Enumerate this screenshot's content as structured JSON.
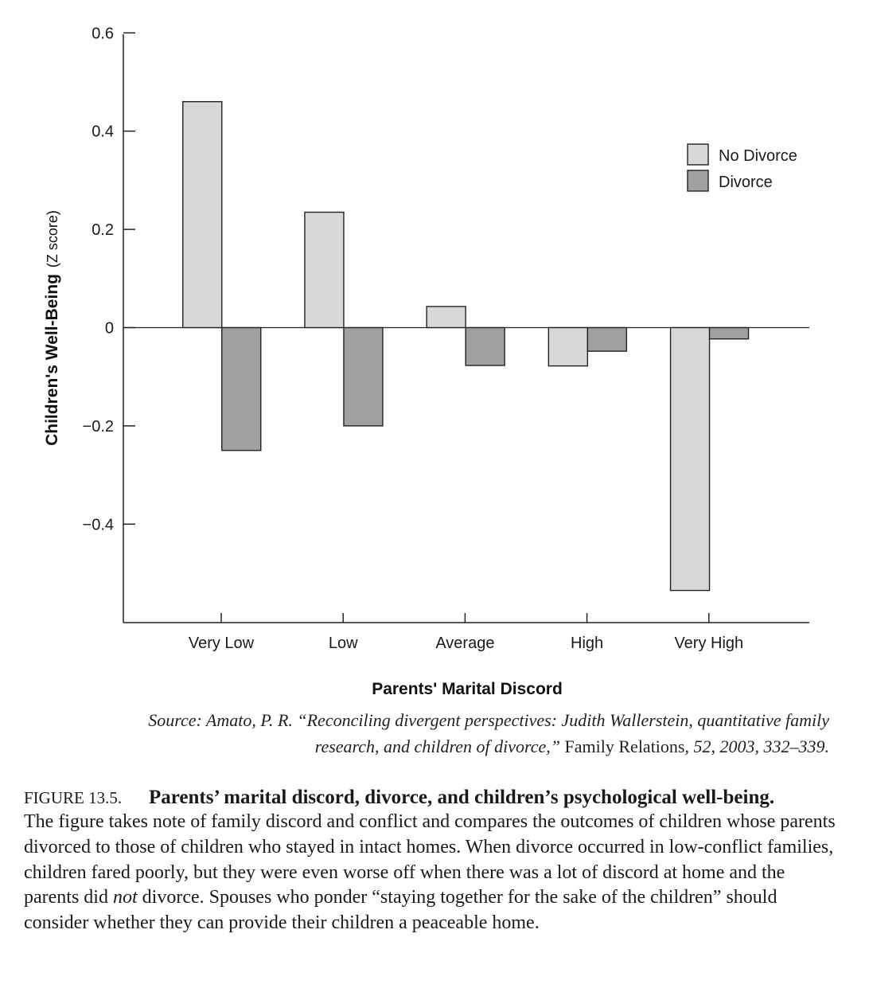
{
  "chart_data": {
    "type": "bar",
    "categories": [
      "Very Low",
      "Low",
      "Average",
      "High",
      "Very High"
    ],
    "series": [
      {
        "name": "No Divorce",
        "values": [
          0.46,
          0.235,
          0.043,
          -0.078,
          -0.535
        ],
        "color": "#d8d8d8"
      },
      {
        "name": "Divorce",
        "values": [
          -0.25,
          -0.2,
          -0.077,
          -0.048,
          -0.023
        ],
        "color": "#a0a0a0"
      }
    ],
    "ylim": [
      -0.6,
      0.6
    ],
    "yticks": [
      0.6,
      0.4,
      0.2,
      0,
      -0.2,
      -0.4
    ],
    "ytick_labels": [
      "0.6",
      "0.4",
      "0.2",
      "0",
      "−0.2",
      "−0.4"
    ],
    "xlabel": "Parents' Marital Discord",
    "ylabel": "Children's Well-Being",
    "ylabel_unit": "(Z score)",
    "legend_position": "top-right",
    "grid": false
  },
  "source": {
    "prefix": "Source: Amato, P. R. “Reconciling divergent perspectives: Judith Wallerstein, quantitative family research, and children of divorce,” ",
    "journal": "Family Relations",
    "suffix": ", 52, 2003, 332–339."
  },
  "figure": {
    "label": "FIGURE 13.5.",
    "title": "Parents’ marital discord, divorce, and children’s psychological well-being.",
    "body_1": "The figure takes note of family discord and conflict and compares the outcomes of children whose parents divorced to those of children who stayed in intact homes. When divorce occurred in low-conflict families, children fared poorly, but they were even worse off when there was a lot of discord at home and the parents did ",
    "body_emph": "not",
    "body_2": " divorce. Spouses who ponder “staying together for the sake of the children” should consider whether they can provide their children a peaceable home."
  }
}
